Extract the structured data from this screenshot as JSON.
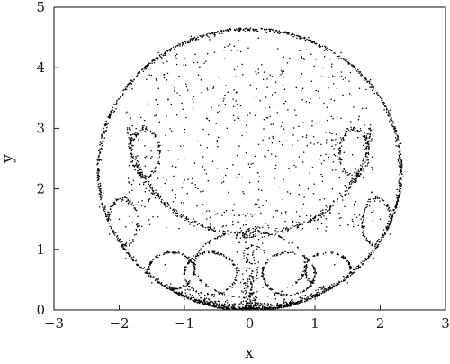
{
  "chart_data": {
    "type": "scatter",
    "title": "",
    "xlabel": "x",
    "ylabel": "y",
    "xlim": [
      -3,
      3
    ],
    "ylim": [
      0,
      5
    ],
    "xticks": [
      -3,
      -2,
      -1,
      0,
      1,
      2,
      3
    ],
    "yticks": [
      0,
      1,
      2,
      3,
      4,
      5
    ],
    "xtick_labels": [
      "−3",
      "−2",
      "−1",
      "0",
      "1",
      "2",
      "3"
    ],
    "ytick_labels": [
      "0",
      "1",
      "2",
      "3",
      "4",
      "5"
    ],
    "grid": false,
    "legend": "none",
    "marker_color": "#000000",
    "series": [
      {
        "description_structure": "dense point cloud forming a circle of radius about 2.35 centered at (0, 2.3); denser rim, a bowl-shaped inner arc from x=-1.9 to 1.9 at y~1.2-2.4, small lobes near the bottom at y~0.3-1.6, and a heavy concentration near (0, 0)",
        "circle": {
          "cx": 0,
          "cy": 2.32,
          "r": 2.34
        },
        "points_sample": [
          [
            -2.3,
            2.2
          ],
          [
            -2.25,
            2.8
          ],
          [
            -2.1,
            3.3
          ],
          [
            -1.8,
            3.85
          ],
          [
            -1.4,
            4.25
          ],
          [
            -0.9,
            4.52
          ],
          [
            -0.3,
            4.65
          ],
          [
            0.3,
            4.64
          ],
          [
            0.9,
            4.5
          ],
          [
            1.4,
            4.25
          ],
          [
            1.85,
            3.8
          ],
          [
            2.15,
            3.3
          ],
          [
            2.32,
            2.75
          ],
          [
            2.35,
            2.2
          ],
          [
            2.3,
            1.7
          ],
          [
            2.15,
            1.25
          ],
          [
            1.9,
            0.85
          ],
          [
            1.5,
            0.45
          ],
          [
            1.0,
            0.18
          ],
          [
            0.4,
            0.02
          ],
          [
            0.0,
            0.0
          ],
          [
            -0.4,
            0.02
          ],
          [
            -1.0,
            0.18
          ],
          [
            -1.5,
            0.45
          ],
          [
            -1.9,
            0.85
          ],
          [
            -2.15,
            1.25
          ],
          [
            -2.3,
            1.7
          ],
          [
            -1.7,
            2.3
          ],
          [
            -1.4,
            1.9
          ],
          [
            -0.9,
            1.45
          ],
          [
            -0.4,
            1.25
          ],
          [
            0.0,
            1.2
          ],
          [
            0.4,
            1.25
          ],
          [
            0.9,
            1.45
          ],
          [
            1.4,
            1.9
          ],
          [
            1.7,
            2.3
          ],
          [
            -0.1,
            0.5
          ],
          [
            0.1,
            0.6
          ],
          [
            -0.05,
            0.8
          ],
          [
            0.05,
            0.95
          ],
          [
            -1.3,
            0.75
          ],
          [
            -1.0,
            0.65
          ],
          [
            1.0,
            0.65
          ],
          [
            1.3,
            0.75
          ],
          [
            -2.0,
            1.5
          ],
          [
            2.0,
            1.5
          ],
          [
            -0.5,
            2.8
          ],
          [
            0.5,
            3.1
          ],
          [
            -0.2,
            3.6
          ],
          [
            0.8,
            3.9
          ]
        ]
      }
    ]
  }
}
